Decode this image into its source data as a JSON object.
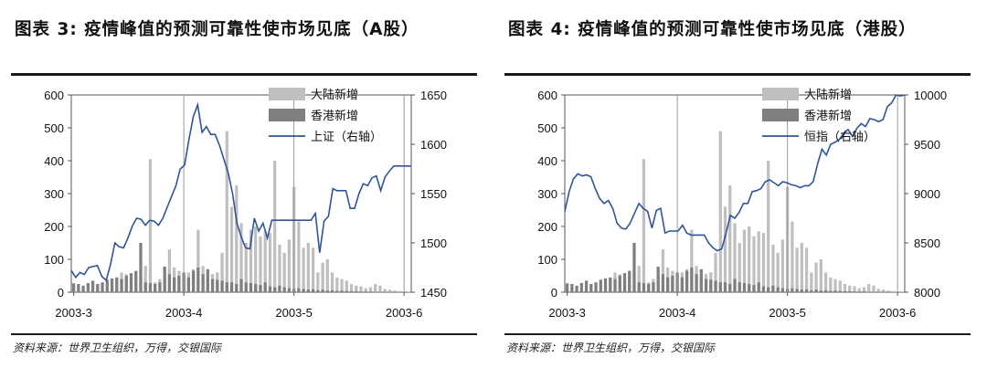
{
  "charts": [
    {
      "title": "图表 3: 疫情峰值的预测可靠性使市场见底（A股）",
      "source": "资料来源：世界卫生组织，万得，交银国际",
      "chart_data": {
        "type": "bar+line",
        "x_tick_labels": [
          "2003-3",
          "2003-4",
          "2003-5",
          "2003-6"
        ],
        "x_tick_index": [
          0,
          23,
          46,
          69
        ],
        "left_axis": {
          "min": 0,
          "max": 600,
          "ticks": [
            0,
            100,
            200,
            300,
            400,
            500,
            600
          ]
        },
        "right_axis": {
          "min": 1450,
          "max": 1650,
          "ticks": [
            1450,
            1500,
            1550,
            1600,
            1650
          ]
        },
        "legend": [
          "大陆新增",
          "香港新增",
          "上证（右轴）"
        ],
        "series": [
          {
            "name": "大陆新增",
            "kind": "bar",
            "axis": "left",
            "color": "#bfbfbf",
            "values": [
              0,
              0,
              0,
              0,
              0,
              0,
              0,
              5,
              20,
              40,
              60,
              55,
              45,
              35,
              60,
              80,
              405,
              30,
              40,
              55,
              130,
              75,
              65,
              50,
              60,
              70,
              190,
              80,
              45,
              55,
              60,
              120,
              490,
              260,
              325,
              210,
              150,
              190,
              200,
              170,
              185,
              180,
              400,
              145,
              120,
              160,
              320,
              215,
              135,
              150,
              135,
              60,
              90,
              100,
              60,
              45,
              40,
              35,
              25,
              20,
              18,
              12,
              15,
              25,
              20,
              10,
              8,
              5,
              4,
              3,
              2
            ]
          },
          {
            "name": "香港新增",
            "kind": "bar",
            "axis": "left",
            "color": "#7f7f7f",
            "values": [
              27,
              25,
              20,
              28,
              35,
              25,
              30,
              38,
              42,
              45,
              40,
              50,
              58,
              65,
              150,
              30,
              28,
              25,
              30,
              78,
              55,
              45,
              50,
              60,
              45,
              65,
              75,
              55,
              70,
              40,
              38,
              35,
              30,
              30,
              25,
              40,
              30,
              28,
              25,
              22,
              30,
              18,
              15,
              20,
              15,
              12,
              10,
              12,
              10,
              8,
              9,
              6,
              8,
              5,
              6,
              4,
              5,
              4,
              3,
              3,
              2,
              2,
              2,
              1,
              1,
              1,
              1,
              1,
              0,
              0,
              0
            ]
          },
          {
            "name": "上证（右轴）",
            "kind": "line",
            "axis": "right",
            "color": "#2f5597",
            "values": [
              1472,
              1465,
              1470,
              1468,
              1475,
              1476,
              1477,
              1466,
              1462,
              1478,
              1500,
              1496,
              1495,
              1505,
              1517,
              1525,
              1524,
              1518,
              1523,
              1522,
              1518,
              1525,
              1536,
              1547,
              1558,
              1575,
              1579,
              1605,
              1628,
              1640,
              1612,
              1618,
              1610,
              1610,
              1599,
              1585,
              1571,
              1550,
              1520,
              1506,
              1495,
              1494,
              1525,
              1512,
              1520,
              1505,
              1523,
              1523,
              1523,
              1523,
              1523,
              1523,
              1523,
              1523,
              1523,
              1523,
              1530,
              1490,
              1522,
              1527,
              1555,
              1553,
              1553,
              1553,
              1535,
              1535,
              1550,
              1560,
              1558,
              1566,
              1568,
              1553,
              1567,
              1573,
              1578,
              1578,
              1578,
              1578,
              1578
            ]
          }
        ],
        "vlines_at": [
          23,
          46,
          69
        ]
      }
    },
    {
      "title": "图表 4: 疫情峰值的预测可靠性使市场见底（港股）",
      "source": "资料来源：世界卫生组织，万得，交银国际",
      "chart_data": {
        "type": "bar+line",
        "x_tick_labels": [
          "2003-3",
          "2003-4",
          "2003-5",
          "2003-6"
        ],
        "x_tick_index": [
          0,
          23,
          46,
          69
        ],
        "left_axis": {
          "min": 0,
          "max": 600,
          "ticks": [
            0,
            100,
            200,
            300,
            400,
            500,
            600
          ]
        },
        "right_axis": {
          "min": 8000,
          "max": 10000,
          "ticks": [
            8000,
            8500,
            9000,
            9500,
            10000
          ]
        },
        "legend": [
          "大陆新增",
          "香港新增",
          "恒指（右轴）"
        ],
        "series": [
          {
            "name": "大陆新增",
            "kind": "bar",
            "axis": "left",
            "color": "#bfbfbf",
            "values": [
              0,
              0,
              0,
              0,
              0,
              0,
              0,
              5,
              20,
              40,
              60,
              55,
              45,
              35,
              60,
              80,
              405,
              30,
              40,
              55,
              130,
              75,
              65,
              50,
              60,
              70,
              190,
              80,
              45,
              55,
              60,
              120,
              490,
              260,
              325,
              210,
              150,
              190,
              200,
              170,
              185,
              180,
              400,
              145,
              120,
              160,
              320,
              215,
              135,
              150,
              135,
              60,
              90,
              100,
              60,
              45,
              40,
              35,
              25,
              20,
              18,
              12,
              15,
              25,
              20,
              10,
              8,
              5,
              4,
              3,
              2
            ]
          },
          {
            "name": "香港新增",
            "kind": "bar",
            "axis": "left",
            "color": "#7f7f7f",
            "values": [
              27,
              25,
              20,
              28,
              35,
              25,
              30,
              38,
              42,
              45,
              40,
              50,
              58,
              65,
              150,
              30,
              28,
              25,
              30,
              78,
              55,
              45,
              50,
              60,
              45,
              65,
              75,
              55,
              70,
              40,
              38,
              35,
              30,
              30,
              25,
              40,
              30,
              28,
              25,
              22,
              30,
              18,
              15,
              20,
              15,
              12,
              10,
              12,
              10,
              8,
              9,
              6,
              8,
              5,
              6,
              4,
              5,
              4,
              3,
              3,
              2,
              2,
              2,
              1,
              1,
              1,
              1,
              1,
              0,
              0,
              0
            ]
          },
          {
            "name": "恒指（右轴）",
            "kind": "line",
            "axis": "right",
            "color": "#2f5597",
            "values": [
              8820,
              9020,
              9150,
              9200,
              9180,
              9190,
              9170,
              9050,
              8950,
              8900,
              8930,
              8850,
              8700,
              8650,
              8640,
              8700,
              8800,
              8900,
              8850,
              8820,
              8650,
              8830,
              8850,
              8600,
              8620,
              8620,
              8620,
              8680,
              8600,
              8580,
              8580,
              8580,
              8580,
              8500,
              8450,
              8420,
              8440,
              8600,
              8780,
              8750,
              8810,
              8900,
              8900,
              9020,
              9030,
              9050,
              9120,
              9140,
              9110,
              9080,
              9120,
              9110,
              9090,
              9080,
              9060,
              9080,
              9080,
              9120,
              9300,
              9450,
              9390,
              9500,
              9520,
              9550,
              9610,
              9650,
              9580,
              9660,
              9710,
              9680,
              9760,
              9750,
              9730,
              9750,
              9880,
              9920,
              10000,
              9990,
              10000
            ]
          }
        ],
        "vlines_at": [
          23,
          46,
          69
        ]
      }
    }
  ]
}
